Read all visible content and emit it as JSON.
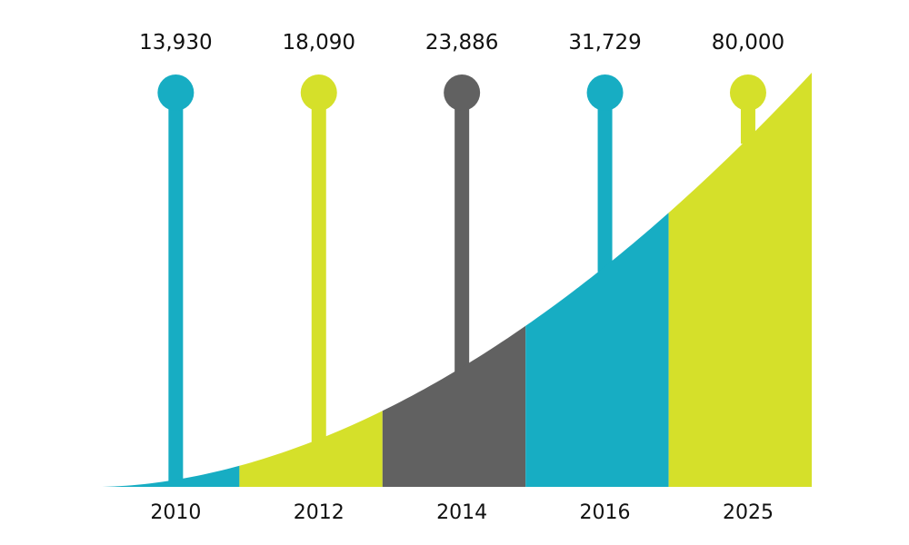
{
  "chart_data": {
    "type": "area",
    "categories": [
      "2010",
      "2012",
      "2014",
      "2016",
      "2025"
    ],
    "values": [
      13930,
      18090,
      23886,
      31729,
      80000
    ],
    "value_labels": [
      "13,930",
      "18,090",
      "23,886",
      "31,729",
      "80,000"
    ],
    "colors": [
      "#17adc3",
      "#d5e02a",
      "#616161",
      "#17adc3",
      "#d5e02a"
    ],
    "title": "",
    "xlabel": "",
    "ylabel": ""
  }
}
